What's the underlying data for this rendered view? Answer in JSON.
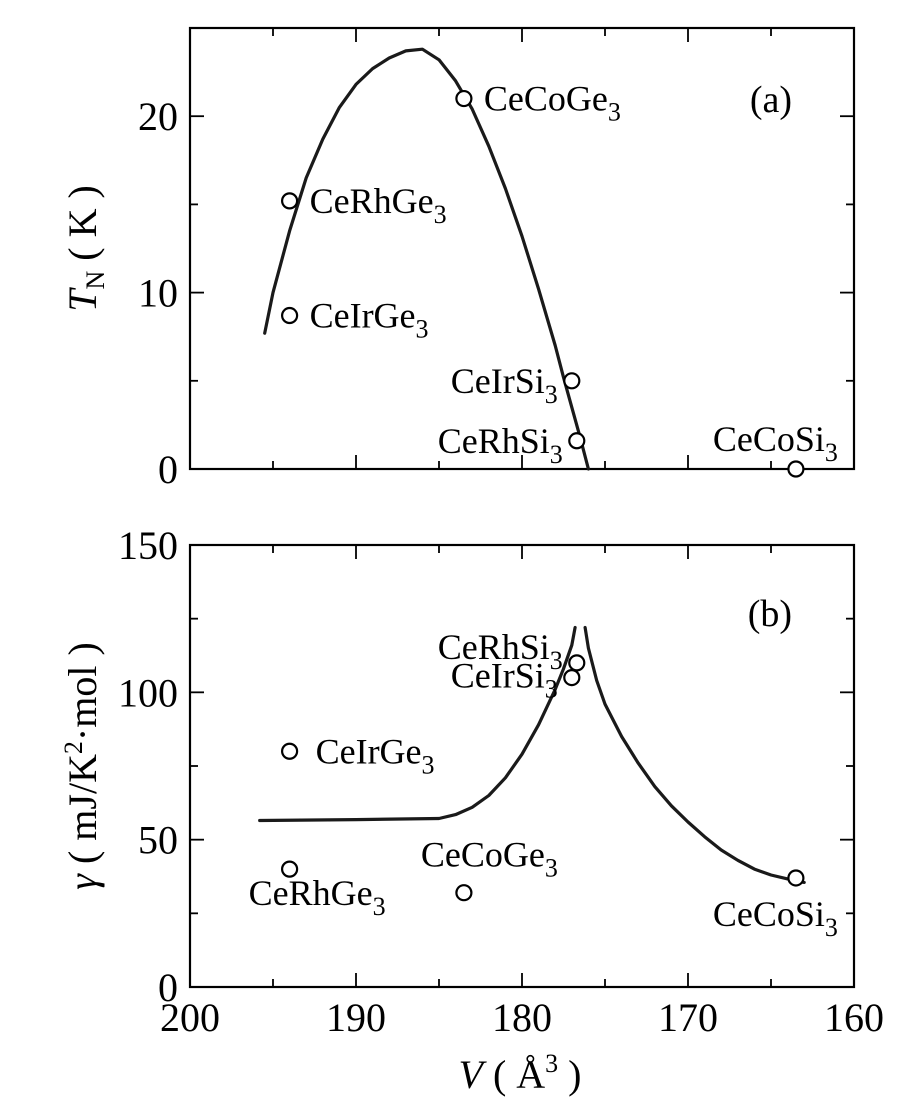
{
  "chart_data": [
    {
      "type": "scatter",
      "panel_label": "(a)",
      "xlabel": {
        "italic": "V",
        "rest": "( Å",
        "sup": "3",
        "close": ")"
      },
      "ylabel": {
        "italic": "T",
        "sub": "N",
        "rest": "( K )"
      },
      "xlim": [
        200,
        160
      ],
      "ylim": [
        0,
        25
      ],
      "x_ticks": [
        200,
        190,
        180,
        170,
        160
      ],
      "y_ticks": [
        0,
        10,
        20
      ],
      "points": [
        {
          "formula": [
            "CeCoGe",
            "3"
          ],
          "x": 183.5,
          "y": 21.0
        },
        {
          "formula": [
            "CeRhGe",
            "3"
          ],
          "x": 194.0,
          "y": 15.2
        },
        {
          "formula": [
            "CeIrGe",
            "3"
          ],
          "x": 194.0,
          "y": 8.7
        },
        {
          "formula": [
            "CeIrSi",
            "3"
          ],
          "x": 177.0,
          "y": 5.0
        },
        {
          "formula": [
            "CeRhSi",
            "3"
          ],
          "x": 176.7,
          "y": 1.6
        },
        {
          "formula": [
            "CeCoSi",
            "3"
          ],
          "x": 163.5,
          "y": 0.0
        }
      ],
      "curve": {
        "x": [
          195.5,
          195.0,
          194.0,
          193.0,
          192.0,
          191.0,
          190.0,
          189.0,
          188.0,
          187.0,
          186.0,
          185.0,
          184.0,
          183.0,
          182.0,
          181.0,
          180.0,
          179.0,
          178.0,
          177.5,
          177.0,
          176.5,
          176.0
        ],
        "y": [
          7.7,
          10.0,
          13.5,
          16.5,
          18.7,
          20.5,
          21.8,
          22.7,
          23.3,
          23.7,
          23.8,
          23.2,
          22.0,
          20.4,
          18.3,
          15.9,
          13.2,
          10.2,
          7.0,
          5.2,
          3.5,
          1.8,
          0.0
        ]
      }
    },
    {
      "type": "scatter",
      "panel_label": "(b)",
      "xlabel": {
        "italic": "V",
        "rest": "( Å",
        "sup": "3",
        "close": ")"
      },
      "ylabel": {
        "italic": "γ",
        "rest": "( mJ/K",
        "sup": "2",
        "rest2": "·mol )"
      },
      "xlim": [
        200,
        160
      ],
      "ylim": [
        0,
        150
      ],
      "x_ticks": [
        200,
        190,
        180,
        170,
        160
      ],
      "x_tick_labels": [
        "200",
        "190",
        "180",
        "170",
        "160"
      ],
      "y_ticks": [
        0,
        50,
        100,
        150
      ],
      "points": [
        {
          "formula": [
            "CeRhSi",
            "3"
          ],
          "x": 176.7,
          "y": 110
        },
        {
          "formula": [
            "CeIrSi",
            "3"
          ],
          "x": 177.0,
          "y": 105
        },
        {
          "formula": [
            "CeIrGe",
            "3"
          ],
          "x": 194.0,
          "y": 80
        },
        {
          "formula": [
            "CeRhGe",
            "3"
          ],
          "x": 194.0,
          "y": 40
        },
        {
          "formula": [
            "CeCoGe",
            "3"
          ],
          "x": 183.5,
          "y": 32
        },
        {
          "formula": [
            "CeCoSi",
            "3"
          ],
          "x": 163.5,
          "y": 37
        }
      ],
      "curve_left": {
        "x": [
          195.8,
          190.0,
          185.0,
          184.0,
          183.0,
          182.0,
          181.0,
          180.0,
          179.0,
          178.0,
          177.5,
          177.0,
          176.8
        ],
        "y": [
          56.5,
          56.8,
          57.2,
          58.5,
          61.0,
          65.0,
          71.0,
          79.0,
          89.0,
          101.0,
          108.0,
          116.0,
          122.0
        ]
      },
      "curve_right": {
        "x": [
          176.2,
          176.0,
          175.5,
          175.0,
          174.0,
          173.0,
          172.0,
          171.0,
          170.0,
          169.0,
          168.0,
          167.0,
          166.0,
          165.0,
          164.0,
          163.0
        ],
        "y": [
          122.0,
          115.0,
          104.0,
          96.0,
          85.0,
          76.0,
          68.0,
          61.5,
          56.0,
          51.0,
          46.5,
          43.0,
          40.0,
          38.0,
          36.7,
          35.5
        ]
      }
    }
  ]
}
